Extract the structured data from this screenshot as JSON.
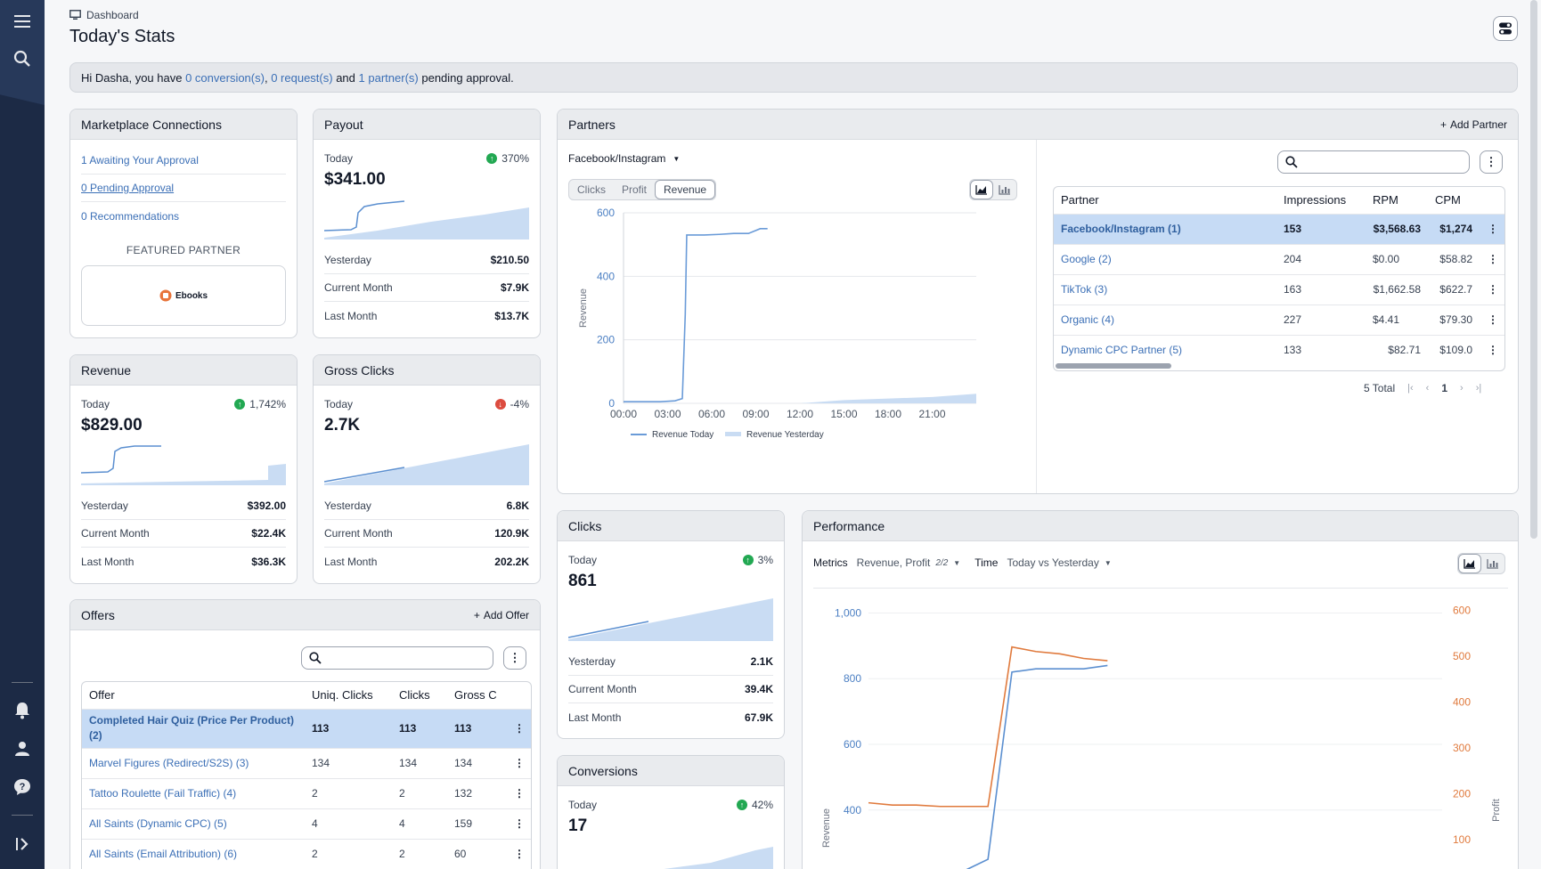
{
  "header": {
    "breadcrumb": "Dashboard",
    "title": "Today's Stats",
    "icon": "monitor-icon"
  },
  "banner": {
    "prefix": "Hi Dasha, you have ",
    "conversions": "0 conversion(s)",
    "sep1": ", ",
    "requests": "0 request(s)",
    "sep2": " and ",
    "partners": "1 partner(s)",
    "suffix": " pending approval."
  },
  "marketplace": {
    "title": "Marketplace Connections",
    "links": [
      "1 Awaiting Your Approval",
      "0 Pending Approval",
      "0 Recommendations"
    ],
    "featured_label": "FEATURED PARTNER",
    "featured_name": "Ebooks"
  },
  "payout": {
    "title": "Payout",
    "today_label": "Today",
    "trend": "370%",
    "trend_dir": "up",
    "value": "$341.00",
    "rows": [
      {
        "label": "Yesterday",
        "value": "$210.50"
      },
      {
        "label": "Current Month",
        "value": "$7.9K"
      },
      {
        "label": "Last Month",
        "value": "$13.7K"
      }
    ]
  },
  "revenue": {
    "title": "Revenue",
    "today_label": "Today",
    "trend": "1,742%",
    "trend_dir": "up",
    "value": "$829.00",
    "rows": [
      {
        "label": "Yesterday",
        "value": "$392.00"
      },
      {
        "label": "Current Month",
        "value": "$22.4K"
      },
      {
        "label": "Last Month",
        "value": "$36.3K"
      }
    ]
  },
  "gross_clicks": {
    "title": "Gross Clicks",
    "today_label": "Today",
    "trend": "-4%",
    "trend_dir": "down",
    "value": "2.7K",
    "rows": [
      {
        "label": "Yesterday",
        "value": "6.8K"
      },
      {
        "label": "Current Month",
        "value": "120.9K"
      },
      {
        "label": "Last Month",
        "value": "202.2K"
      }
    ]
  },
  "clicks": {
    "title": "Clicks",
    "today_label": "Today",
    "trend": "3%",
    "trend_dir": "up",
    "value": "861",
    "rows": [
      {
        "label": "Yesterday",
        "value": "2.1K"
      },
      {
        "label": "Current Month",
        "value": "39.4K"
      },
      {
        "label": "Last Month",
        "value": "67.9K"
      }
    ]
  },
  "conversions": {
    "title": "Conversions",
    "today_label": "Today",
    "trend": "42%",
    "trend_dir": "up",
    "value": "17"
  },
  "partners": {
    "title": "Partners",
    "add_label": "Add Partner",
    "selector": "Facebook/Instagram",
    "tabs": [
      "Clicks",
      "Profit",
      "Revenue"
    ],
    "active_tab": "Revenue",
    "search_placeholder": "",
    "columns": [
      "Partner",
      "Impressions",
      "RPM",
      "CPM"
    ],
    "rows": [
      {
        "name": "Facebook/Instagram (1)",
        "impressions": "153",
        "rpm": "$3,568.63",
        "cpm": "$1,274"
      },
      {
        "name": "Google (2)",
        "impressions": "204",
        "rpm": "$0.00",
        "cpm": "$58.82"
      },
      {
        "name": "TikTok (3)",
        "impressions": "163",
        "rpm": "$1,662.58",
        "cpm": "$622.7"
      },
      {
        "name": "Organic (4)",
        "impressions": "227",
        "rpm": "$4.41",
        "cpm": "$79.30"
      },
      {
        "name": "Dynamic CPC Partner (5)",
        "impressions": "133",
        "rpm": "$82.71",
        "cpm": "$109.0"
      }
    ],
    "total": "5 Total",
    "page": "1"
  },
  "offers": {
    "title": "Offers",
    "add_label": "Add Offer",
    "search_placeholder": "",
    "columns": [
      "Offer",
      "Uniq. Clicks",
      "Clicks",
      "Gross C"
    ],
    "rows": [
      {
        "name": "Completed Hair Quiz (Price Per Product) (2)",
        "uniq": "113",
        "clicks": "113",
        "gross": "113"
      },
      {
        "name": "Marvel Figures (Redirect/S2S) (3)",
        "uniq": "134",
        "clicks": "134",
        "gross": "134"
      },
      {
        "name": "Tattoo Roulette (Fail Traffic) (4)",
        "uniq": "2",
        "clicks": "2",
        "gross": "132"
      },
      {
        "name": "All Saints (Dynamic CPC) (5)",
        "uniq": "4",
        "clicks": "4",
        "gross": "159"
      },
      {
        "name": "All Saints (Email Attribution) (6)",
        "uniq": "2",
        "clicks": "2",
        "gross": "60"
      }
    ]
  },
  "performance": {
    "title": "Performance",
    "metrics_label": "Metrics",
    "metrics_value": "Revenue, Profit",
    "metrics_count": "2/2",
    "time_label": "Time",
    "time_value": "Today vs Yesterday"
  },
  "chart_data": [
    {
      "type": "line",
      "chart": "partners-revenue",
      "xlabel": "",
      "ylabel": "Revenue",
      "x_ticks": [
        "00:00",
        "03:00",
        "06:00",
        "09:00",
        "12:00",
        "15:00",
        "18:00",
        "21:00"
      ],
      "y_ticks": [
        0,
        200,
        400,
        600
      ],
      "ylim": [
        0,
        600
      ],
      "xlim": [
        0,
        24
      ],
      "series": [
        {
          "name": "Revenue Today",
          "color": "#6a9bd8",
          "x": [
            0,
            1.5,
            2.5,
            3.5,
            4.0,
            4.2,
            4.3,
            5.5,
            6.5,
            7.5,
            8.0,
            8.5,
            9.3,
            9.8
          ],
          "values": [
            5,
            5,
            5,
            8,
            15,
            280,
            530,
            530,
            532,
            535,
            535,
            535,
            550,
            550
          ]
        },
        {
          "name": "Revenue Yesterday",
          "color": "#c9dcf3",
          "x": [
            0,
            3,
            6,
            9,
            12,
            15,
            18,
            21,
            24
          ],
          "values": [
            0,
            0,
            0,
            0,
            0,
            10,
            15,
            20,
            30
          ]
        }
      ]
    },
    {
      "type": "line",
      "chart": "performance",
      "ylabel": "Revenue",
      "y2label": "Profit",
      "y_ticks": [
        200,
        400,
        600,
        800,
        1000
      ],
      "y2_ticks": [
        0,
        100,
        200,
        300,
        400,
        500,
        600
      ],
      "ylim": [
        150,
        1050
      ],
      "y2lim": [
        -15,
        630
      ],
      "xlim": [
        0,
        24
      ],
      "series": [
        {
          "name": "Revenue Today",
          "axis": "left",
          "color": "#5b8fd0",
          "x": [
            0,
            1,
            2,
            3,
            4,
            5,
            6,
            7,
            8,
            9,
            10
          ],
          "values": [
            210,
            210,
            215,
            215,
            215,
            250,
            820,
            830,
            830,
            830,
            840
          ]
        },
        {
          "name": "Profit Today",
          "axis": "right",
          "color": "#e07a3d",
          "x": [
            0,
            1,
            2,
            3,
            4,
            5,
            6,
            7,
            8,
            9,
            10
          ],
          "values": [
            180,
            175,
            175,
            172,
            172,
            172,
            520,
            510,
            505,
            495,
            490
          ]
        }
      ]
    }
  ]
}
